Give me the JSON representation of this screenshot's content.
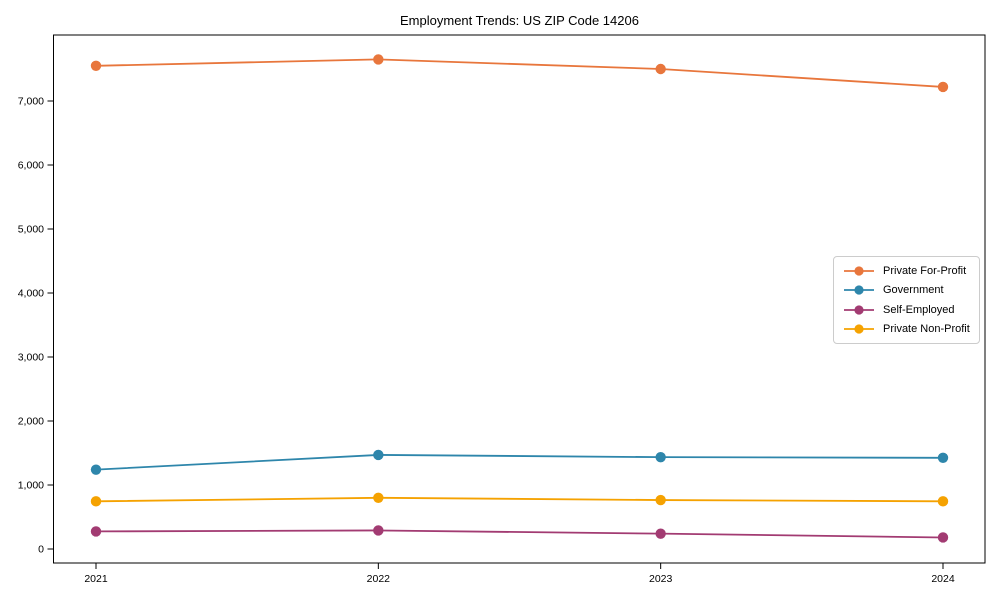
{
  "chart_data": {
    "type": "line",
    "title": "Employment Trends: US ZIP Code 14206",
    "xlabel": "",
    "ylabel": "",
    "x": [
      "2021",
      "2022",
      "2023",
      "2024"
    ],
    "yticks": [
      0,
      1000,
      2000,
      3000,
      4000,
      5000,
      6000,
      7000
    ],
    "ytick_labels": [
      "0",
      "1,000",
      "2,000",
      "3,000",
      "4,000",
      "5,000",
      "6,000",
      "7,000"
    ],
    "ylim": [
      0,
      8050
    ],
    "grid": false,
    "legend_position": "center-right",
    "frame_color": "#000000",
    "series": [
      {
        "name": "Private For-Profit",
        "color": "#E8763C",
        "values": [
          7550,
          7650,
          7500,
          7220
        ]
      },
      {
        "name": "Government",
        "color": "#2E86AB",
        "values": [
          1240,
          1470,
          1435,
          1425
        ]
      },
      {
        "name": "Self-Employed",
        "color": "#A23B72",
        "values": [
          275,
          290,
          240,
          180
        ]
      },
      {
        "name": "Private Non-Profit",
        "color": "#F5A201",
        "values": [
          745,
          800,
          765,
          745
        ]
      }
    ]
  }
}
